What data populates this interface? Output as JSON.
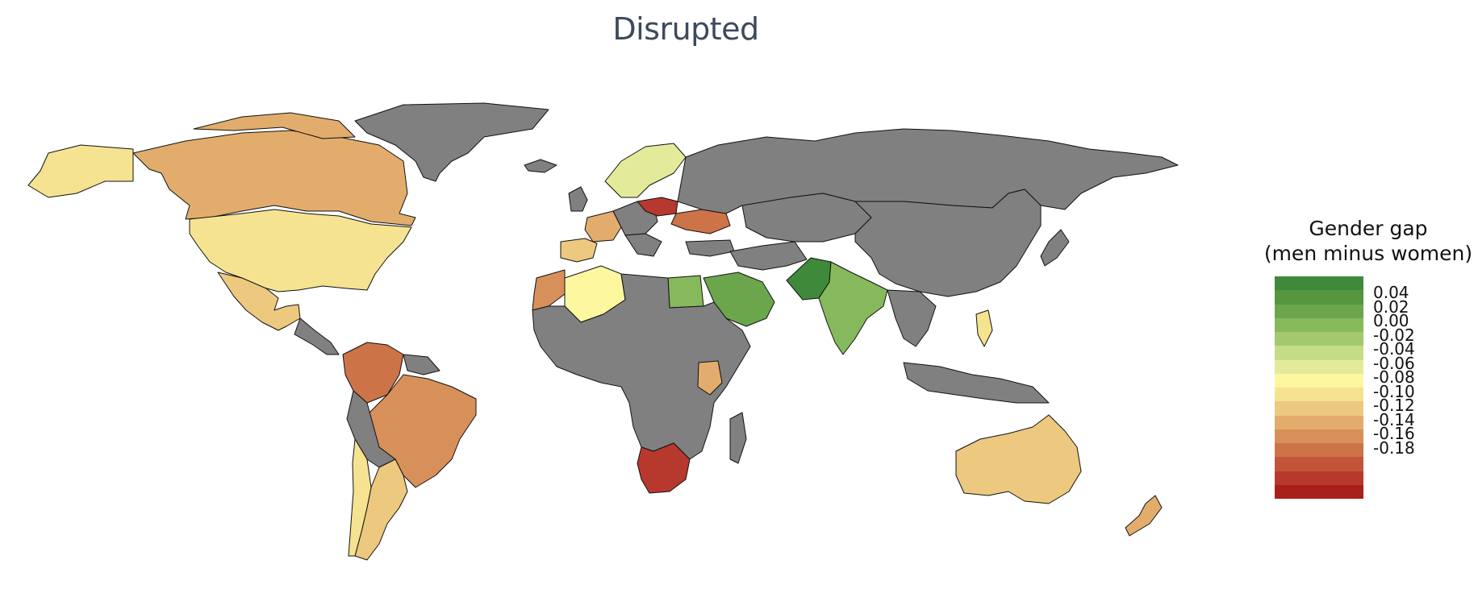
{
  "title": "Disrupted",
  "legend": {
    "title_line1": "Gender gap",
    "title_line2": "(men minus women)",
    "ticks": [
      "0.04",
      "0.02",
      "0.00",
      "-0.02",
      "-0.04",
      "-0.06",
      "-0.08",
      "-0.10",
      "-0.12",
      "-0.14",
      "-0.16",
      "-0.18"
    ],
    "ramp_colors": [
      "#3f8a3a",
      "#55963f",
      "#6ba64c",
      "#86b95c",
      "#a2c96e",
      "#c5dc88",
      "#e3eb9b",
      "#fdf8a0",
      "#f5e391",
      "#ecc97f",
      "#e2ad6c",
      "#d8905a",
      "#cd7348",
      "#c25539",
      "#b7382c",
      "#a91f1b"
    ]
  },
  "colors": {
    "no_data": "#808080",
    "ocean": "#ffffff"
  },
  "regions": [
    {
      "name": "Greenland",
      "class": "no-data"
    },
    {
      "name": "Russia",
      "class": "no-data"
    },
    {
      "name": "Canada",
      "value": -0.1
    },
    {
      "name": "Alaska (USA)",
      "value": -0.08
    },
    {
      "name": "USA",
      "value": -0.08
    },
    {
      "name": "Mexico",
      "value": -0.09
    },
    {
      "name": "Brazil",
      "value": -0.12
    },
    {
      "name": "Colombia",
      "value": -0.14
    },
    {
      "name": "Argentina",
      "value": -0.09
    },
    {
      "name": "Chile",
      "value": -0.08
    },
    {
      "name": "Scandinavia",
      "value": -0.05
    },
    {
      "name": "Poland",
      "value": -0.16
    },
    {
      "name": "Ukraine",
      "value": -0.14
    },
    {
      "name": "Spain",
      "value": -0.09
    },
    {
      "name": "France",
      "value": -0.1
    },
    {
      "name": "Algeria",
      "value": -0.06
    },
    {
      "name": "Morocco",
      "value": -0.12
    },
    {
      "name": "Egypt",
      "value": 0.0
    },
    {
      "name": "Saudi Arabia",
      "value": 0.02
    },
    {
      "name": "Pakistan",
      "value": 0.04
    },
    {
      "name": "India",
      "value": 0.0
    },
    {
      "name": "Kenya",
      "value": -0.1
    },
    {
      "name": "South Africa",
      "value": -0.16
    },
    {
      "name": "Australia",
      "value": -0.09
    },
    {
      "name": "New Zealand",
      "value": -0.1
    },
    {
      "name": "Philippines",
      "value": -0.08
    },
    {
      "name": "Africa (other)",
      "class": "no-data"
    },
    {
      "name": "Asia (other)",
      "class": "no-data"
    }
  ]
}
